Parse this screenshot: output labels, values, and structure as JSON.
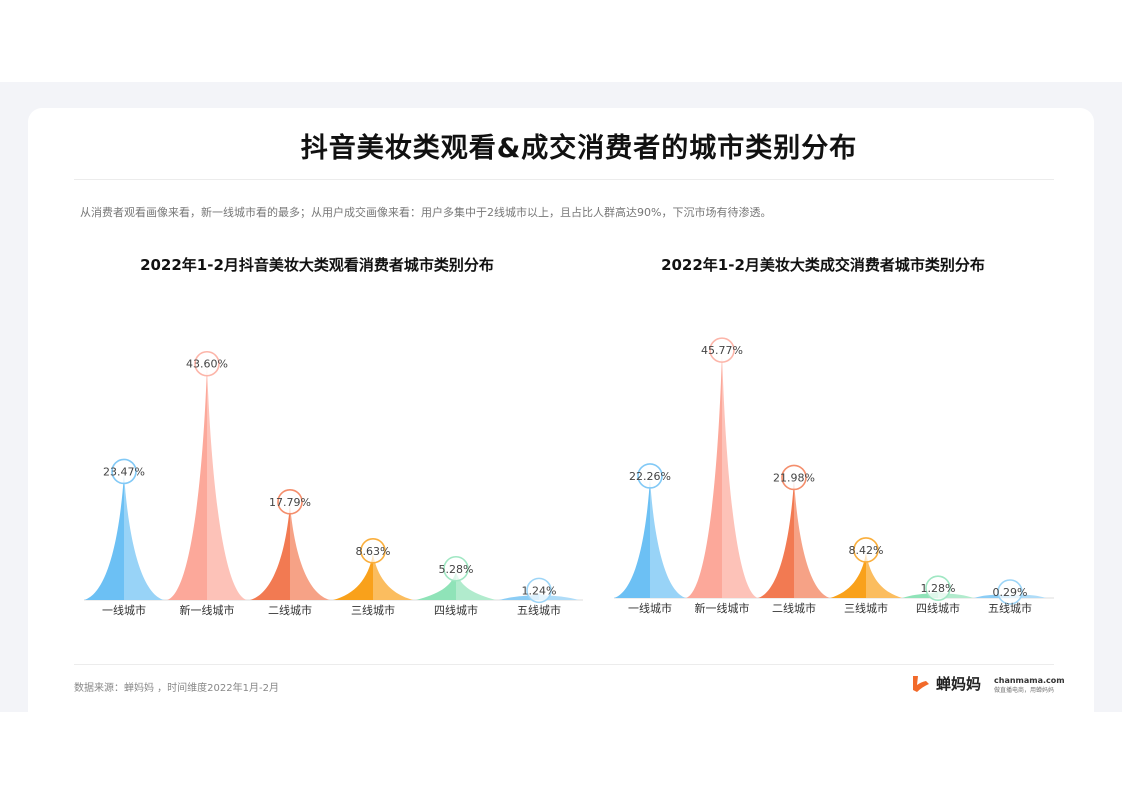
{
  "page": {
    "title": "抖音美妆类观看&成交消费者的城市类别分布",
    "description": "从消费者观看画像来看，新一线城市看的最多；从用户成交画像来看：用户多集中于2线城市以上，且占比人群高达90%，下沉市场有待渗透。",
    "source": "数据来源：蝉妈妈 ，时间维度2022年1月-2月",
    "logo_text": "蝉妈妈",
    "site": "chanmama.com",
    "slogan": "做直播电商，用蝉妈妈"
  },
  "chart_data": [
    {
      "type": "bar",
      "title": "2022年1-2月抖音美妆大类观看消费者城市类别分布",
      "categories": [
        "一线城市",
        "新一线城市",
        "二线城市",
        "三线城市",
        "四线城市",
        "五线城市"
      ],
      "values": [
        23.47,
        43.6,
        17.79,
        8.63,
        5.28,
        1.24
      ],
      "labels": [
        "23.47%",
        "43.60%",
        "17.79%",
        "8.63%",
        "5.28%",
        "1.24%"
      ],
      "unit": "%",
      "colors": [
        "#6cc0f4",
        "#fca89a",
        "#f27a52",
        "#f9a11b",
        "#8fe3b8",
        "#8ccdf5"
      ],
      "grid": false
    },
    {
      "type": "bar",
      "title": "2022年1-2月美妆大类成交消费者城市类别分布",
      "categories": [
        "一线城市",
        "新一线城市",
        "二线城市",
        "三线城市",
        "四线城市",
        "五线城市"
      ],
      "values": [
        22.26,
        45.77,
        21.98,
        8.42,
        1.28,
        0.29
      ],
      "labels": [
        "22.26%",
        "45.77%",
        "21.98%",
        "8.42%",
        "1.28%",
        "0.29%"
      ],
      "unit": "%",
      "colors": [
        "#6cc0f4",
        "#fca89a",
        "#f27a52",
        "#f9a11b",
        "#8fe3b8",
        "#8ccdf5"
      ],
      "grid": false
    }
  ]
}
